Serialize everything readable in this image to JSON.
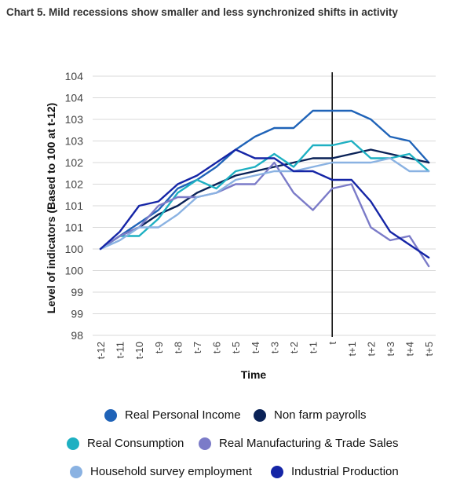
{
  "title": "Chart 5. Mild recessions show smaller and less synchronized shifts in activity",
  "chart_data": {
    "type": "line",
    "xlabel": "Time",
    "ylabel": "Level of indicators (Based to 100 at t-12)",
    "categories": [
      "t-12",
      "t-11",
      "t-10",
      "t-9",
      "t-8",
      "t-7",
      "t-6",
      "t-5",
      "t-4",
      "t-3",
      "t-2",
      "t-1",
      "t",
      "t+1",
      "t+2",
      "t+3",
      "t+4",
      "t+5"
    ],
    "y_tick_labels": [
      "98",
      "99",
      "99",
      "100",
      "100",
      "101",
      "101",
      "102",
      "102",
      "103",
      "103",
      "104",
      "104"
    ],
    "ylim": [
      98,
      104
    ],
    "grid": "horizontal",
    "legend_position": "bottom",
    "vertical_marker": "t",
    "series": [
      {
        "name": "Real Personal Income",
        "color": "#1f63b8",
        "values": [
          100.0,
          100.3,
          100.6,
          100.9,
          101.4,
          101.6,
          101.9,
          102.3,
          102.6,
          102.8,
          102.8,
          103.2,
          103.2,
          103.2,
          103.0,
          102.6,
          102.5,
          102.0
        ]
      },
      {
        "name": "Non farm payrolls",
        "color": "#0a2257",
        "values": [
          100.0,
          100.3,
          100.5,
          100.8,
          101.0,
          101.3,
          101.5,
          101.7,
          101.8,
          101.9,
          102.0,
          102.1,
          102.1,
          102.2,
          102.3,
          102.2,
          102.1,
          102.0
        ]
      },
      {
        "name": "Real Consumption",
        "color": "#1eb0c2",
        "values": [
          100.0,
          100.3,
          100.3,
          100.7,
          101.3,
          101.6,
          101.4,
          101.8,
          101.9,
          102.2,
          101.9,
          102.4,
          102.4,
          102.5,
          102.1,
          102.1,
          102.2,
          101.8
        ]
      },
      {
        "name": "Real Manufacturing & Trade Sales",
        "color": "#7b7bc8",
        "values": [
          100.0,
          100.3,
          100.5,
          101.0,
          101.2,
          101.2,
          101.3,
          101.5,
          101.5,
          102.0,
          101.3,
          100.9,
          101.4,
          101.5,
          100.5,
          100.2,
          100.3,
          99.6
        ]
      },
      {
        "name": "Household survey employment",
        "color": "#8ab2e2",
        "values": [
          100.0,
          100.2,
          100.5,
          100.5,
          100.8,
          101.2,
          101.3,
          101.6,
          101.7,
          101.8,
          101.8,
          101.9,
          102.0,
          102.0,
          102.0,
          102.1,
          101.8,
          101.8
        ]
      },
      {
        "name": "Industrial Production",
        "color": "#1525a6",
        "values": [
          100.0,
          100.4,
          101.0,
          101.1,
          101.5,
          101.7,
          102.0,
          102.3,
          102.1,
          102.1,
          101.8,
          101.8,
          101.6,
          101.6,
          101.1,
          100.4,
          100.1,
          99.8
        ]
      }
    ]
  }
}
